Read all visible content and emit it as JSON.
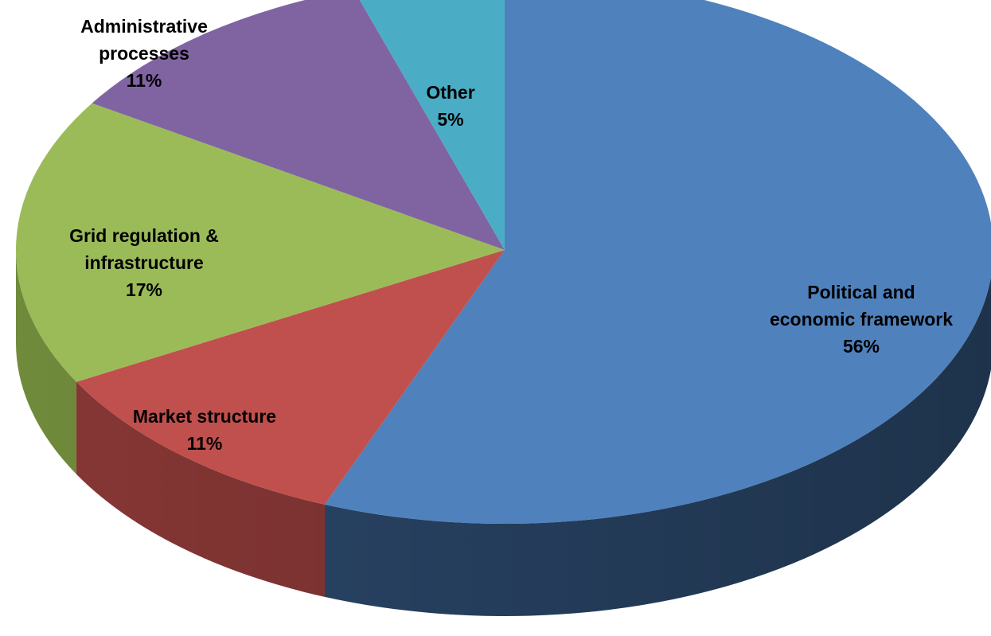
{
  "chart_data": {
    "type": "pie",
    "style": "3d",
    "title": "",
    "slices": [
      {
        "label": "Political and economic framework",
        "label_lines": [
          "Political and",
          "economic framework"
        ],
        "value": 56,
        "value_label": "56%",
        "color": "#4F81BD",
        "side_color": "#2C4A6E"
      },
      {
        "label": "Market structure",
        "label_lines": [
          "Market structure"
        ],
        "value": 11,
        "value_label": "11%",
        "color": "#C0504D",
        "side_color": "#8E3A38"
      },
      {
        "label": "Grid regulation & infrastructure",
        "label_lines": [
          "Grid regulation &",
          "infrastructure"
        ],
        "value": 17,
        "value_label": "17%",
        "color": "#9BBB59",
        "side_color": "#76923F"
      },
      {
        "label": "Administrative processes",
        "label_lines": [
          "Administrative",
          "processes"
        ],
        "value": 11,
        "value_label": "11%",
        "color": "#8064A2",
        "side_color": "#5E4A78"
      },
      {
        "label": "Other",
        "label_lines": [
          "Other"
        ],
        "value": 5,
        "value_label": "5%",
        "color": "#4BACC6",
        "side_color": "#357E92"
      }
    ],
    "start": "12 o'clock",
    "direction": "clockwise",
    "legend": "none"
  }
}
